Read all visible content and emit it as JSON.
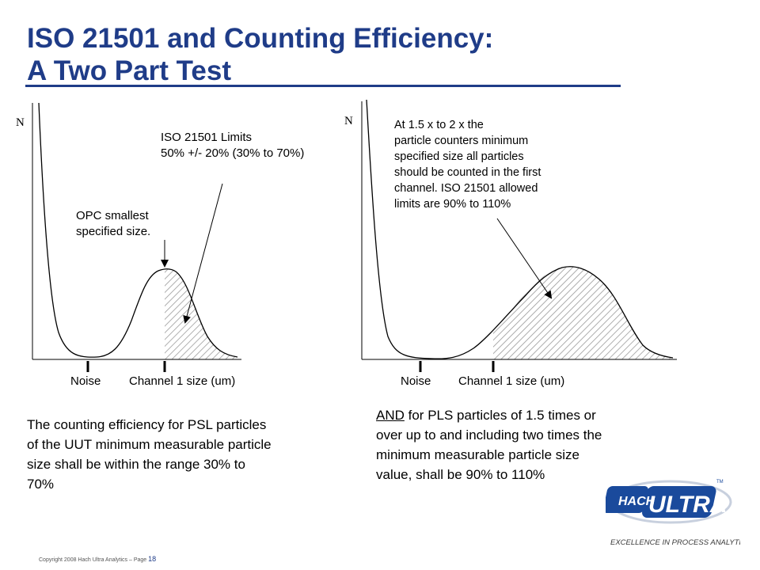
{
  "title": {
    "line1": "ISO 21501 and Counting Efficiency:",
    "line2": "A Two Part Test"
  },
  "left_panel": {
    "axis_label": "N",
    "limits_annotation": {
      "line1": "ISO 21501 Limits",
      "line2": "50% +/- 20% (30% to 70%)"
    },
    "opc_annotation": {
      "line1": "OPC smallest",
      "line2": "specified size."
    },
    "tick_labels": {
      "noise": "Noise",
      "channel": "Channel 1 size (um)"
    },
    "description": {
      "lines": [
        "The counting efficiency for PSL particles",
        "of the UUT minimum measurable particle",
        "size shall be within the range 30% to",
        "70%"
      ]
    }
  },
  "right_panel": {
    "axis_label": "N",
    "annotation": {
      "lines": [
        "At 1.5 x to 2 x the",
        "particle counters minimum",
        "specified size all particles",
        "should be counted in the first",
        "channel. ISO 21501 allowed",
        "limits are 90% to 110%"
      ]
    },
    "tick_labels": {
      "noise": "Noise",
      "channel": "Channel 1 size (um)"
    },
    "description": {
      "and_word": "AND",
      "line1_rest": " for PLS particles of 1.5 times or",
      "lines": [
        "over up to and including two times the",
        "minimum measurable particle size",
        "value, shall be 90% to 110%"
      ]
    }
  },
  "footer": {
    "copyright": "Copyright 2008 Hach Ultra Analytics – Page",
    "page_number": "18"
  },
  "logo": {
    "hach": "HACH",
    "ultra": "ULTRA",
    "tm": "TM",
    "tagline": "EXCELLENCE IN PROCESS ANALYTICS"
  },
  "colors": {
    "title": "#1f3c88",
    "logo_blue": "#1a4a9c",
    "hatch": "#9a9a9a"
  }
}
